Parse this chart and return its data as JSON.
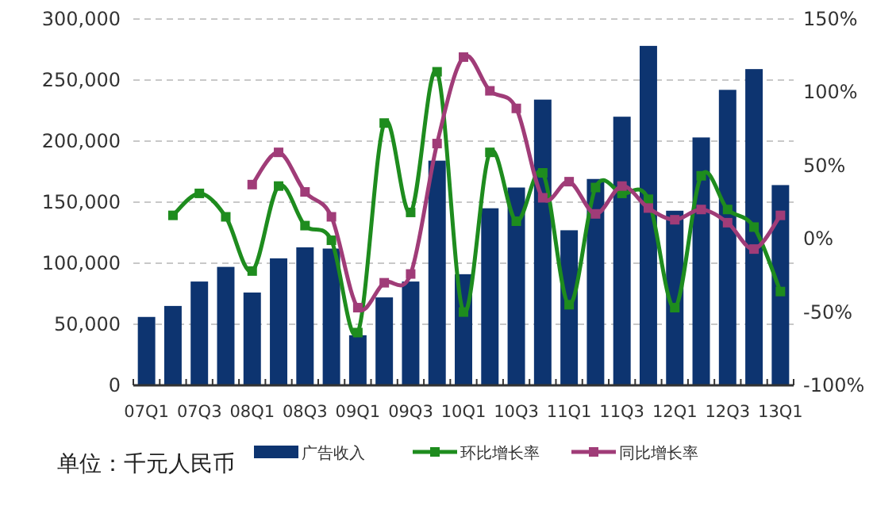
{
  "chart_data": {
    "type": "bar",
    "categories": [
      "07Q1",
      null,
      "07Q3",
      null,
      "08Q1",
      null,
      "08Q3",
      null,
      "09Q1",
      null,
      "09Q3",
      null,
      "10Q1",
      null,
      "10Q3",
      null,
      "11Q1",
      null,
      "11Q3",
      null,
      "12Q1",
      null,
      "12Q3",
      null,
      "13Q1"
    ],
    "series": [
      {
        "name": "广告收入",
        "color": "#0d3470",
        "values": [
          56000,
          65000,
          85000,
          97000,
          76000,
          104000,
          113000,
          112000,
          41000,
          72000,
          85000,
          184000,
          91000,
          145000,
          162000,
          234000,
          127000,
          169000,
          220000,
          278000,
          143000,
          203000,
          242000,
          259000,
          164000
        ]
      },
      {
        "name": "环比增长率",
        "type": "line",
        "axis": "y2",
        "color": "#1e8c1e",
        "values": [
          null,
          16,
          31,
          15,
          -22,
          36,
          9,
          -1,
          -64,
          79,
          18,
          114,
          -50,
          59,
          12,
          45,
          -45,
          35,
          31,
          27,
          -47,
          43,
          20,
          8,
          -36
        ]
      },
      {
        "name": "同比增长率",
        "type": "line",
        "axis": "y2",
        "color": "#a03c78",
        "values": [
          null,
          null,
          null,
          null,
          37,
          59,
          32,
          15,
          -47,
          -30,
          -24,
          65,
          124,
          101,
          89,
          28,
          39,
          17,
          36,
          21,
          13,
          20,
          11,
          -7,
          16
        ]
      }
    ],
    "ylim": [
      0,
      300000
    ],
    "yticks": [
      0,
      {
        "value": 50000,
        "label": "50,000"
      },
      {
        "value": 100000,
        "label": "100,000"
      },
      {
        "value": 150000,
        "label": "150,000"
      },
      {
        "value": 200000,
        "label": "200,000"
      },
      {
        "value": 250000,
        "label": "250,000"
      },
      {
        "value": 300000,
        "label": "300,000"
      }
    ],
    "y2lim": [
      -100,
      150
    ],
    "y2ticks": [
      {
        "value": -100,
        "label": "-100%"
      },
      {
        "value": -50,
        "label": "-50%"
      },
      {
        "value": 0,
        "label": "0%"
      },
      {
        "value": 50,
        "label": "50%"
      },
      {
        "value": 100,
        "label": "100%"
      },
      {
        "value": 150,
        "label": "150%"
      }
    ],
    "grid": "y",
    "legend": "bottom",
    "marker": "square",
    "line_style": "solid",
    "annotations": [
      "单位：千元人民币"
    ]
  }
}
